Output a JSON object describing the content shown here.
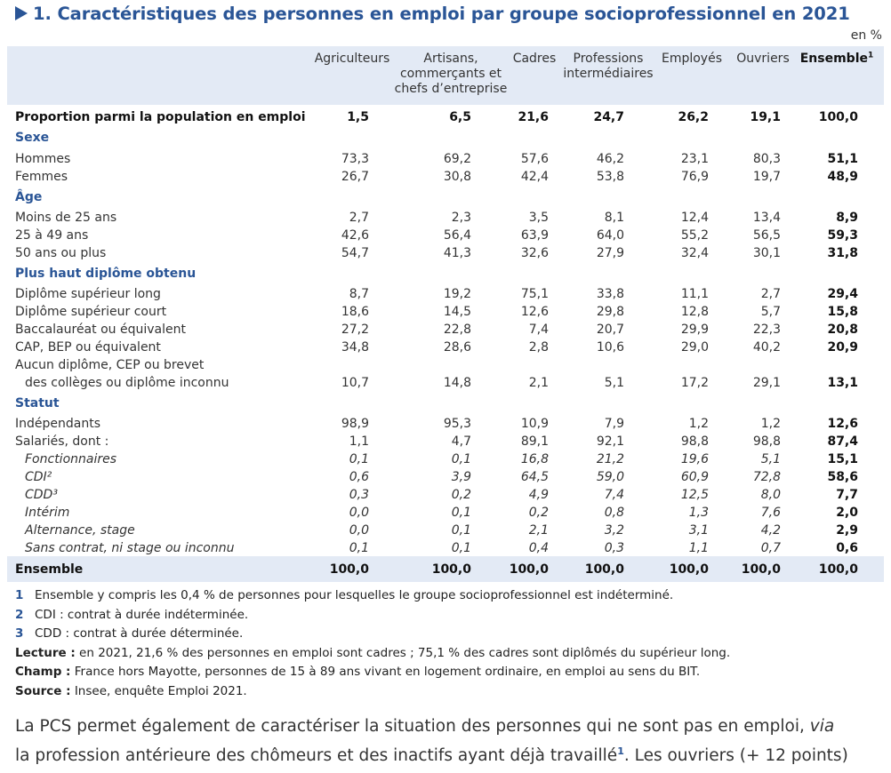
{
  "title": "1. Caractéristiques des personnes en emploi par groupe socioprofessionnel en 2021",
  "unit": "en %",
  "columns": [
    {
      "lines": [
        "Agriculteurs"
      ]
    },
    {
      "lines": [
        "Artisans,",
        "commerçants et",
        "chefs d’entreprise"
      ]
    },
    {
      "lines": [
        "Cadres"
      ]
    },
    {
      "lines": [
        "Professions",
        "intermédiaires"
      ]
    },
    {
      "lines": [
        "Employés"
      ]
    },
    {
      "lines": [
        "Ouvriers"
      ]
    },
    {
      "lines": [
        "Ensemble"
      ],
      "sup": "1"
    }
  ],
  "rows": [
    {
      "label": "Proportion parmi la population en emploi",
      "style": "bold",
      "values": [
        "1,5",
        "6,5",
        "21,6",
        "24,7",
        "26,2",
        "19,1",
        "100,0"
      ]
    },
    {
      "label": "Sexe",
      "style": "section"
    },
    {
      "label": "Hommes",
      "values": [
        "73,3",
        "69,2",
        "57,6",
        "46,2",
        "23,1",
        "80,3",
        "51,1"
      ]
    },
    {
      "label": "Femmes",
      "values": [
        "26,7",
        "30,8",
        "42,4",
        "53,8",
        "76,9",
        "19,7",
        "48,9"
      ]
    },
    {
      "label": "Âge",
      "style": "section"
    },
    {
      "label": "Moins de 25 ans",
      "values": [
        "2,7",
        "2,3",
        "3,5",
        "8,1",
        "12,4",
        "13,4",
        "8,9"
      ]
    },
    {
      "label": "25 à 49 ans",
      "values": [
        "42,6",
        "56,4",
        "63,9",
        "64,0",
        "55,2",
        "56,5",
        "59,3"
      ]
    },
    {
      "label": "50 ans ou plus",
      "values": [
        "54,7",
        "41,3",
        "32,6",
        "27,9",
        "32,4",
        "30,1",
        "31,8"
      ]
    },
    {
      "label": "Plus haut diplôme obtenu",
      "style": "section"
    },
    {
      "label": "Diplôme supérieur long",
      "values": [
        "8,7",
        "19,2",
        "75,1",
        "33,8",
        "11,1",
        "2,7",
        "29,4"
      ]
    },
    {
      "label": "Diplôme supérieur court",
      "values": [
        "18,6",
        "14,5",
        "12,6",
        "29,8",
        "12,8",
        "5,7",
        "15,8"
      ]
    },
    {
      "label": "Baccalauréat ou équivalent",
      "values": [
        "27,2",
        "22,8",
        "7,4",
        "20,7",
        "29,9",
        "22,3",
        "20,8"
      ]
    },
    {
      "label": "CAP, BEP ou équivalent",
      "values": [
        "34,8",
        "28,6",
        "2,8",
        "10,6",
        "29,0",
        "40,2",
        "20,9"
      ]
    },
    {
      "label": "Aucun diplôme, CEP ou brevet"
    },
    {
      "label": "des collèges ou diplôme inconnu",
      "style": "indent",
      "values": [
        "10,7",
        "14,8",
        "2,1",
        "5,1",
        "17,2",
        "29,1",
        "13,1"
      ]
    },
    {
      "label": "Statut",
      "style": "section"
    },
    {
      "label": "Indépendants",
      "values": [
        "98,9",
        "95,3",
        "10,9",
        "7,9",
        "1,2",
        "1,2",
        "12,6"
      ]
    },
    {
      "label": "Salariés, dont :",
      "values": [
        "1,1",
        "4,7",
        "89,1",
        "92,1",
        "98,8",
        "98,8",
        "87,4"
      ]
    },
    {
      "label": "Fonctionnaires",
      "style": "italic",
      "values": [
        "0,1",
        "0,1",
        "16,8",
        "21,2",
        "19,6",
        "5,1",
        "15,1"
      ]
    },
    {
      "label": "CDI²",
      "style": "italic",
      "values": [
        "0,6",
        "3,9",
        "64,5",
        "59,0",
        "60,9",
        "72,8",
        "58,6"
      ]
    },
    {
      "label": "CDD³",
      "style": "italic",
      "values": [
        "0,3",
        "0,2",
        "4,9",
        "7,4",
        "12,5",
        "8,0",
        "7,7"
      ]
    },
    {
      "label": "Intérim",
      "style": "italic",
      "values": [
        "0,0",
        "0,1",
        "0,2",
        "0,8",
        "1,3",
        "7,6",
        "2,0"
      ]
    },
    {
      "label": "Alternance, stage",
      "style": "italic",
      "values": [
        "0,0",
        "0,1",
        "2,1",
        "3,2",
        "3,1",
        "4,2",
        "2,9"
      ]
    },
    {
      "label": "Sans contrat, ni stage ou inconnu",
      "style": "italic",
      "values": [
        "0,1",
        "0,1",
        "0,4",
        "0,3",
        "1,1",
        "0,7",
        "0,6"
      ]
    },
    {
      "label": "Ensemble",
      "style": "bold",
      "values": [
        "100,0",
        "100,0",
        "100,0",
        "100,0",
        "100,0",
        "100,0",
        "100,0"
      ]
    }
  ],
  "footnotes": [
    {
      "num": "1",
      "text": "Ensemble y compris les 0,4 % de personnes pour lesquelles le groupe socioprofessionnel est indéterminé."
    },
    {
      "num": "2",
      "text": "CDI : contrat à durée indéterminée."
    },
    {
      "num": "3",
      "text": "CDD : contrat à durée déterminée."
    }
  ],
  "notes": [
    {
      "label": "Lecture :",
      "text": " en 2021, 21,6 % des personnes en emploi sont cadres ; 75,1 % des cadres sont diplômés du supérieur long."
    },
    {
      "label": "Champ :",
      "text": " France hors Mayotte, personnes de 15 à 89 ans vivant en logement ordinaire, en emploi au sens du BIT."
    },
    {
      "label": "Source :",
      "text": " Insee, enquête Emploi 2021."
    }
  ],
  "body": {
    "line1_a": "La PCS permet également de caractériser la situation des personnes qui ne sont pas en emploi, ",
    "line1_italic": "via",
    "line2_a": "la profession antérieure des chômeurs et des inactifs ayant déjà travaillé",
    "line2_sup": "1",
    "line2_b": ". Les ouvriers (+ 12 points)"
  }
}
